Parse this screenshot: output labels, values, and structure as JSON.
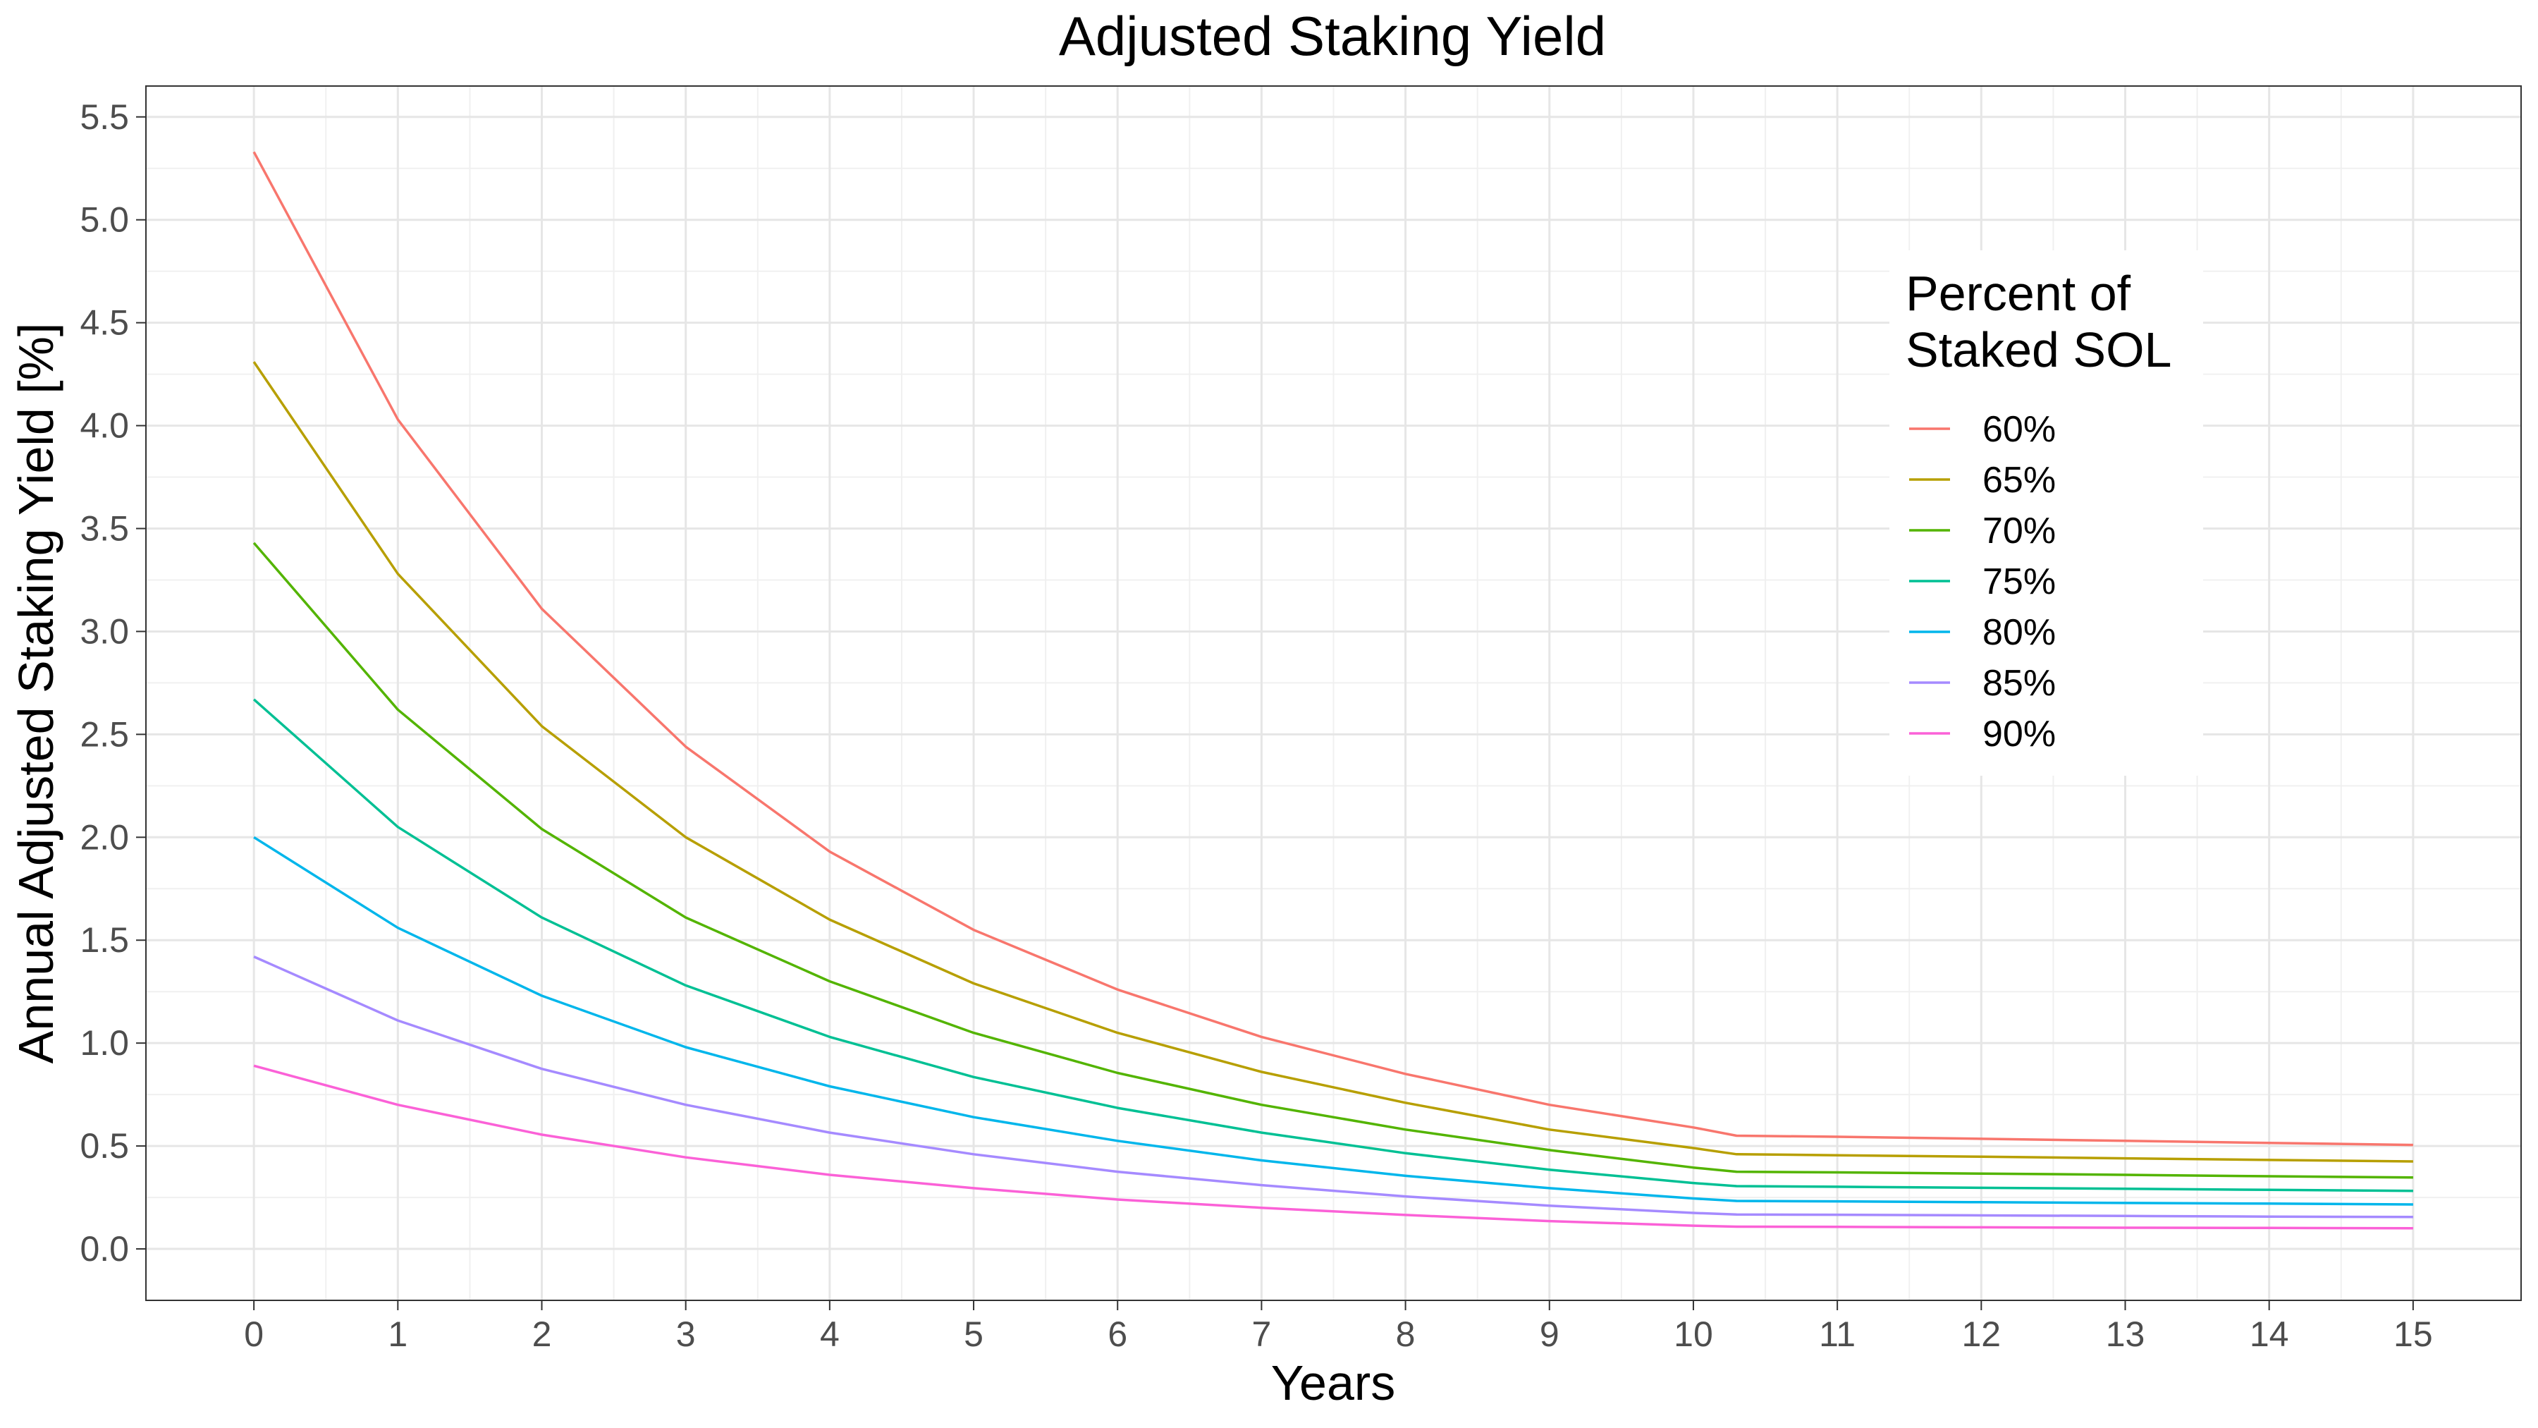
{
  "chart_data": {
    "type": "line",
    "title": "Adjusted Staking Yield",
    "xlabel": "Years",
    "ylabel": "Annual Adjusted Staking Yield [%]",
    "xlim": [
      -0.75,
      15.75
    ],
    "ylim": [
      -0.25,
      5.65
    ],
    "x_ticks": [
      0,
      1,
      2,
      3,
      4,
      5,
      6,
      7,
      8,
      9,
      10,
      11,
      12,
      13,
      14,
      15
    ],
    "x_tick_labels": [
      "0",
      "1",
      "2",
      "3",
      "4",
      "5",
      "6",
      "7",
      "8",
      "9",
      "10",
      "11",
      "12",
      "13",
      "14",
      "15"
    ],
    "y_ticks": [
      0.0,
      0.5,
      1.0,
      1.5,
      2.0,
      2.5,
      3.0,
      3.5,
      4.0,
      4.5,
      5.0,
      5.5
    ],
    "y_tick_labels": [
      "0.0",
      "0.5",
      "1.0",
      "1.5",
      "2.0",
      "2.5",
      "3.0",
      "3.5",
      "4.0",
      "4.5",
      "5.0",
      "5.5"
    ],
    "grid": true,
    "legend_position": "right, upper",
    "legend_title_lines": [
      "Percent of",
      "Staked SOL"
    ],
    "x": [
      0,
      1,
      2,
      3,
      4,
      5,
      6,
      7,
      8,
      9,
      10,
      10.3,
      11,
      12,
      13,
      14,
      15
    ],
    "series": [
      {
        "name": "60%",
        "color": "#F8766D",
        "values": [
          5.33,
          4.03,
          3.11,
          2.44,
          1.93,
          1.55,
          1.26,
          1.03,
          0.85,
          0.7,
          0.59,
          0.55,
          0.545,
          0.535,
          0.525,
          0.515,
          0.505
        ]
      },
      {
        "name": "65%",
        "color": "#B79F00",
        "values": [
          4.31,
          3.28,
          2.54,
          2.0,
          1.6,
          1.29,
          1.05,
          0.86,
          0.71,
          0.58,
          0.49,
          0.46,
          0.455,
          0.448,
          0.44,
          0.432,
          0.425
        ]
      },
      {
        "name": "70%",
        "color": "#53B400",
        "values": [
          3.43,
          2.62,
          2.04,
          1.61,
          1.3,
          1.05,
          0.855,
          0.7,
          0.58,
          0.48,
          0.395,
          0.375,
          0.372,
          0.366,
          0.36,
          0.353,
          0.347
        ]
      },
      {
        "name": "75%",
        "color": "#00C094",
        "values": [
          2.67,
          2.05,
          1.61,
          1.28,
          1.03,
          0.835,
          0.685,
          0.565,
          0.465,
          0.385,
          0.32,
          0.305,
          0.302,
          0.297,
          0.292,
          0.287,
          0.282
        ]
      },
      {
        "name": "80%",
        "color": "#00B6EB",
        "values": [
          2.0,
          1.56,
          1.23,
          0.98,
          0.79,
          0.64,
          0.525,
          0.43,
          0.355,
          0.295,
          0.245,
          0.233,
          0.231,
          0.227,
          0.223,
          0.22,
          0.216
        ]
      },
      {
        "name": "85%",
        "color": "#A58AFF",
        "values": [
          1.42,
          1.11,
          0.875,
          0.7,
          0.565,
          0.46,
          0.375,
          0.31,
          0.255,
          0.21,
          0.175,
          0.167,
          0.166,
          0.163,
          0.16,
          0.157,
          0.155
        ]
      },
      {
        "name": "90%",
        "color": "#FB61D7",
        "values": [
          0.89,
          0.7,
          0.555,
          0.445,
          0.36,
          0.295,
          0.24,
          0.2,
          0.165,
          0.135,
          0.113,
          0.108,
          0.107,
          0.105,
          0.103,
          0.102,
          0.1
        ]
      }
    ]
  }
}
